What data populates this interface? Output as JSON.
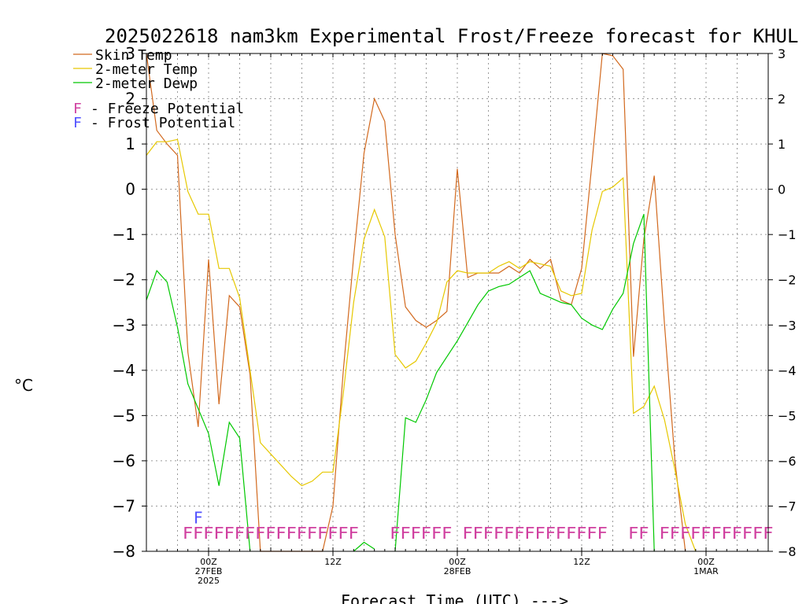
{
  "chart_data": {
    "type": "line",
    "title": "2025022618 nam3km Experimental Frost/Freeze forecast for KHUL",
    "ylabel": "°C",
    "xlabel": "Forecast Time (UTC) --->",
    "ylim": [
      -8,
      3
    ],
    "xlim": [
      0,
      60
    ],
    "grid": true,
    "y_ticks": [
      "3",
      "2",
      "1",
      "0",
      "−1",
      "−2",
      "−3",
      "−4",
      "−5",
      "−6",
      "−7",
      "−8"
    ],
    "x_ticks": [
      {
        "x": 6,
        "lines": [
          "00Z",
          "27FEB",
          "2025"
        ]
      },
      {
        "x": 18,
        "lines": [
          "12Z"
        ]
      },
      {
        "x": 30,
        "lines": [
          "00Z",
          "28FEB"
        ]
      },
      {
        "x": 42,
        "lines": [
          "12Z"
        ]
      },
      {
        "x": 54,
        "lines": [
          "00Z",
          "1MAR"
        ]
      }
    ],
    "legend": {
      "placement": "top-left",
      "entries": [
        {
          "label": "Skin Temp",
          "color": "#d2691e"
        },
        {
          "label": "2-meter Temp",
          "color": "#e6c800"
        },
        {
          "label": "2-meter Dewp",
          "color": "#00c800"
        }
      ],
      "potentials": [
        {
          "symbol": "F",
          "text": "- Freeze Potential",
          "color": "#d040a0"
        },
        {
          "symbol": "F",
          "text": "- Frost Potential",
          "color": "#5050ff"
        }
      ]
    },
    "series": [
      {
        "name": "Skin Temp",
        "color": "#d2691e",
        "points": [
          [
            0,
            3.0
          ],
          [
            1,
            1.3
          ],
          [
            2,
            1.0
          ],
          [
            3,
            0.75
          ],
          [
            4,
            -3.6
          ],
          [
            5,
            -5.25
          ],
          [
            6,
            -1.55
          ],
          [
            7,
            -4.75
          ],
          [
            8,
            -2.35
          ],
          [
            9,
            -2.6
          ],
          [
            10,
            -4.1
          ],
          [
            11,
            -8.0
          ],
          [
            17,
            -8.0
          ],
          [
            18,
            -7.0
          ],
          [
            19,
            -4.0
          ],
          [
            20,
            -1.5
          ],
          [
            21,
            0.8
          ],
          [
            22,
            2.0
          ],
          [
            23,
            1.5
          ],
          [
            24,
            -1.0
          ],
          [
            25,
            -2.6
          ],
          [
            26,
            -2.9
          ],
          [
            27,
            -3.05
          ],
          [
            28,
            -2.9
          ],
          [
            29,
            -2.7
          ],
          [
            30,
            0.45
          ],
          [
            31,
            -1.95
          ],
          [
            32,
            -1.85
          ],
          [
            33,
            -1.85
          ],
          [
            34,
            -1.85
          ],
          [
            35,
            -1.7
          ],
          [
            36,
            -1.85
          ],
          [
            37,
            -1.55
          ],
          [
            38,
            -1.75
          ],
          [
            39,
            -1.55
          ],
          [
            40,
            -2.45
          ],
          [
            41,
            -2.55
          ],
          [
            42,
            -1.75
          ],
          [
            43,
            0.6
          ],
          [
            44,
            3.0
          ],
          [
            45,
            2.95
          ],
          [
            46,
            2.65
          ],
          [
            47,
            -3.7
          ],
          [
            48,
            -1.1
          ],
          [
            49,
            0.3
          ],
          [
            50,
            -3.0
          ],
          [
            51,
            -6.0
          ],
          [
            52,
            -8.0
          ]
        ]
      },
      {
        "name": "2-meter Temp",
        "color": "#e6c800",
        "points": [
          [
            0,
            0.75
          ],
          [
            1,
            1.05
          ],
          [
            2,
            1.05
          ],
          [
            3,
            1.1
          ],
          [
            4,
            -0.05
          ],
          [
            5,
            -0.55
          ],
          [
            6,
            -0.55
          ],
          [
            7,
            -1.75
          ],
          [
            8,
            -1.75
          ],
          [
            9,
            -2.4
          ],
          [
            10,
            -4.0
          ],
          [
            11,
            -5.6
          ],
          [
            12,
            -5.85
          ],
          [
            13,
            -6.1
          ],
          [
            14,
            -6.35
          ],
          [
            15,
            -6.55
          ],
          [
            16,
            -6.45
          ],
          [
            17,
            -6.25
          ],
          [
            18,
            -6.25
          ],
          [
            19,
            -4.5
          ],
          [
            20,
            -2.5
          ],
          [
            21,
            -1.1
          ],
          [
            22,
            -0.45
          ],
          [
            23,
            -1.05
          ],
          [
            24,
            -3.65
          ],
          [
            25,
            -3.95
          ],
          [
            26,
            -3.8
          ],
          [
            27,
            -3.4
          ],
          [
            28,
            -2.95
          ],
          [
            29,
            -2.05
          ],
          [
            30,
            -1.8
          ],
          [
            31,
            -1.85
          ],
          [
            32,
            -1.85
          ],
          [
            33,
            -1.85
          ],
          [
            34,
            -1.7
          ],
          [
            35,
            -1.6
          ],
          [
            36,
            -1.75
          ],
          [
            37,
            -1.6
          ],
          [
            38,
            -1.65
          ],
          [
            39,
            -1.7
          ],
          [
            40,
            -2.25
          ],
          [
            41,
            -2.35
          ],
          [
            42,
            -2.3
          ],
          [
            43,
            -0.9
          ],
          [
            44,
            -0.05
          ],
          [
            45,
            0.05
          ],
          [
            46,
            0.25
          ],
          [
            47,
            -4.95
          ],
          [
            48,
            -4.8
          ],
          [
            49,
            -4.35
          ],
          [
            50,
            -5.1
          ],
          [
            51,
            -6.2
          ],
          [
            52,
            -7.4
          ],
          [
            53,
            -8.0
          ]
        ]
      },
      {
        "name": "2-meter Dewp",
        "color": "#00c800",
        "points": [
          [
            0,
            -2.45
          ],
          [
            1,
            -1.8
          ],
          [
            2,
            -2.05
          ],
          [
            3,
            -3.05
          ],
          [
            4,
            -4.3
          ],
          [
            5,
            -4.85
          ],
          [
            6,
            -5.4
          ],
          [
            7,
            -6.55
          ],
          [
            8,
            -5.15
          ],
          [
            9,
            -5.5
          ],
          [
            10,
            -8.0
          ]
        ],
        "segments": [
          [
            [
              20,
              -8.0
            ],
            [
              21,
              -7.8
            ],
            [
              22,
              -7.95
            ]
          ],
          [
            [
              24,
              -8.0
            ],
            [
              25,
              -5.05
            ],
            [
              26,
              -5.15
            ],
            [
              27,
              -4.65
            ],
            [
              28,
              -4.05
            ],
            [
              29,
              -3.7
            ],
            [
              30,
              -3.35
            ],
            [
              31,
              -2.95
            ],
            [
              32,
              -2.55
            ],
            [
              33,
              -2.25
            ],
            [
              34,
              -2.15
            ],
            [
              35,
              -2.1
            ],
            [
              36,
              -1.95
            ],
            [
              37,
              -1.8
            ],
            [
              38,
              -2.3
            ],
            [
              39,
              -2.4
            ],
            [
              40,
              -2.5
            ],
            [
              41,
              -2.55
            ],
            [
              42,
              -2.85
            ],
            [
              43,
              -3.0
            ],
            [
              44,
              -3.1
            ],
            [
              45,
              -2.65
            ],
            [
              46,
              -2.3
            ],
            [
              47,
              -1.2
            ],
            [
              48,
              -0.55
            ],
            [
              49,
              -8.0
            ]
          ]
        ]
      }
    ],
    "freeze_runs": [
      "FFFFFFFFFFFFFFFFF",
      "FFFFFF",
      "FFFFFFFFFFFFFF",
      "FF",
      "FFFFFFFFFFF"
    ],
    "freeze_run_ranges": [
      [
        3.5,
        20.5
      ],
      [
        23.5,
        29.5
      ],
      [
        30.5,
        44.5
      ],
      [
        46.5,
        48.5
      ],
      [
        49.5,
        60.5
      ]
    ],
    "frost_marks": [
      {
        "x": 5,
        "text": "F"
      }
    ],
    "colors": {
      "freeze": "#d040a0",
      "frost": "#5050ff",
      "axis": "#000000",
      "grid": "#9a9a9a"
    }
  }
}
